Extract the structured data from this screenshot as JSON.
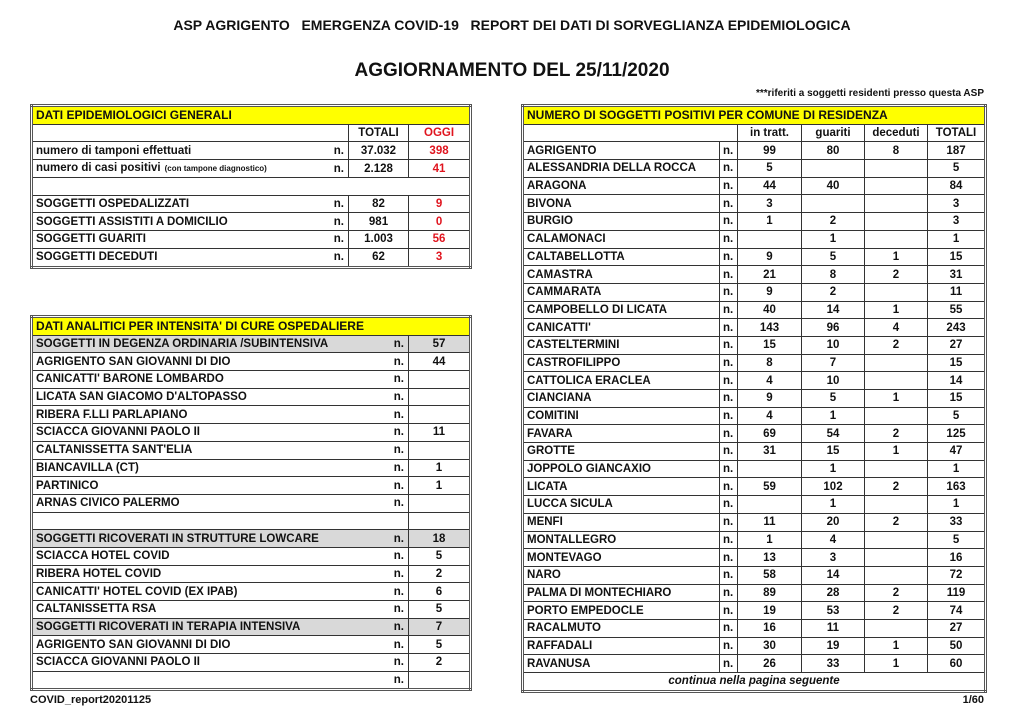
{
  "header": {
    "title": "ASP AGRIGENTO   EMERGENZA COVID-19   REPORT DEI DATI DI SORVEGLIANZA EPIDEMIOLOGICA",
    "subtitle": "AGGIORNAMENTO DEL 25/11/2020",
    "note": "***riferiti a soggetti residenti presso questa ASP"
  },
  "general": {
    "title": "DATI EPIDEMIOLOGICI GENERALI",
    "col_totali": "TOTALI",
    "col_oggi": "OGGI",
    "rows": [
      {
        "label": "numero di tamponi effettuati",
        "unit": "n.",
        "totali": "37.032",
        "oggi": "398"
      },
      {
        "label": "numero di casi positivi",
        "label_small": "(con tampone diagnostico)",
        "unit": "n.",
        "totali": "2.128",
        "oggi": "41"
      },
      {
        "label": "",
        "unit": "",
        "totali": "",
        "oggi": ""
      },
      {
        "label": "SOGGETTI OSPEDALIZZATI",
        "unit": "n.",
        "totali": "82",
        "oggi": "9"
      },
      {
        "label": "SOGGETTI ASSISTITI A DOMICILIO",
        "unit": "n.",
        "totali": "981",
        "oggi": "0"
      },
      {
        "label": "SOGGETTI GUARITI",
        "unit": "n.",
        "totali": "1.003",
        "oggi": "56"
      },
      {
        "label": "SOGGETTI DECEDUTI",
        "unit": "n.",
        "totali": "62",
        "oggi": "3"
      }
    ],
    "highlight_color": "#ffff00",
    "today_color": "#e0141e"
  },
  "hospital": {
    "title": "DATI ANALITICI PER INTENSITA' DI CURE OSPEDALIERE",
    "rows": [
      {
        "label": "SOGGETTI IN DEGENZA ORDINARIA /SUBINTENSIVA",
        "unit": "n.",
        "value": "57",
        "group": true
      },
      {
        "label": "AGRIGENTO SAN GIOVANNI DI DIO",
        "unit": "n.",
        "value": "44"
      },
      {
        "label": "CANICATTI'  BARONE LOMBARDO",
        "unit": "n.",
        "value": ""
      },
      {
        "label": "LICATA SAN GIACOMO D'ALTOPASSO",
        "unit": "n.",
        "value": ""
      },
      {
        "label": "RIBERA F.LLI PARLAPIANO",
        "unit": "n.",
        "value": ""
      },
      {
        "label": "SCIACCA GIOVANNI PAOLO II",
        "unit": "n.",
        "value": "11"
      },
      {
        "label": "CALTANISSETTA SANT'ELIA",
        "unit": "n.",
        "value": ""
      },
      {
        "label": "BIANCAVILLA (CT)",
        "unit": "n.",
        "value": "1"
      },
      {
        "label": "PARTINICO",
        "unit": "n.",
        "value": "1"
      },
      {
        "label": "ARNAS CIVICO PALERMO",
        "unit": "n.",
        "value": ""
      },
      {
        "label": "",
        "unit": "",
        "value": ""
      },
      {
        "label": "SOGGETTI RICOVERATI IN STRUTTURE LOWCARE",
        "unit": "n.",
        "value": "18",
        "group": true
      },
      {
        "label": "SCIACCA HOTEL COVID",
        "unit": "n.",
        "value": "5"
      },
      {
        "label": "RIBERA HOTEL COVID",
        "unit": "n.",
        "value": "2"
      },
      {
        "label": "CANICATTI' HOTEL COVID (EX IPAB)",
        "unit": "n.",
        "value": "6"
      },
      {
        "label": "CALTANISSETTA RSA",
        "unit": "n.",
        "value": "5"
      },
      {
        "label": "SOGGETTI RICOVERATI IN TERAPIA INTENSIVA",
        "unit": "n.",
        "value": "7",
        "group": true
      },
      {
        "label": "AGRIGENTO SAN GIOVANNI DI DIO",
        "unit": "n.",
        "value": "5"
      },
      {
        "label": "SCIACCA GIOVANNI PAOLO II",
        "unit": "n.",
        "value": "2"
      },
      {
        "label": "",
        "unit": "n.",
        "value": ""
      }
    ]
  },
  "municipalities": {
    "title": "NUMERO DI SOGGETTI POSITIVI PER COMUNE DI RESIDENZA",
    "columns": [
      "in tratt.",
      "guariti",
      "deceduti",
      "TOTALI"
    ],
    "rows": [
      [
        "AGRIGENTO",
        "n.",
        "99",
        "80",
        "8",
        "187"
      ],
      [
        "ALESSANDRIA DELLA ROCCA",
        "n.",
        "5",
        "",
        "",
        "5"
      ],
      [
        "ARAGONA",
        "n.",
        "44",
        "40",
        "",
        "84"
      ],
      [
        "BIVONA",
        "n.",
        "3",
        "",
        "",
        "3"
      ],
      [
        "BURGIO",
        "n.",
        "1",
        "2",
        "",
        "3"
      ],
      [
        "CALAMONACI",
        "n.",
        "",
        "1",
        "",
        "1"
      ],
      [
        "CALTABELLOTTA",
        "n.",
        "9",
        "5",
        "1",
        "15"
      ],
      [
        "CAMASTRA",
        "n.",
        "21",
        "8",
        "2",
        "31"
      ],
      [
        "CAMMARATA",
        "n.",
        "9",
        "2",
        "",
        "11"
      ],
      [
        "CAMPOBELLO DI LICATA",
        "n.",
        "40",
        "14",
        "1",
        "55"
      ],
      [
        "CANICATTI'",
        "n.",
        "143",
        "96",
        "4",
        "243"
      ],
      [
        "CASTELTERMINI",
        "n.",
        "15",
        "10",
        "2",
        "27"
      ],
      [
        "CASTROFILIPPO",
        "n.",
        "8",
        "7",
        "",
        "15"
      ],
      [
        "CATTOLICA ERACLEA",
        "n.",
        "4",
        "10",
        "",
        "14"
      ],
      [
        "CIANCIANA",
        "n.",
        "9",
        "5",
        "1",
        "15"
      ],
      [
        "COMITINI",
        "n.",
        "4",
        "1",
        "",
        "5"
      ],
      [
        "FAVARA",
        "n.",
        "69",
        "54",
        "2",
        "125"
      ],
      [
        "GROTTE",
        "n.",
        "31",
        "15",
        "1",
        "47"
      ],
      [
        "JOPPOLO GIANCAXIO",
        "n.",
        "",
        "1",
        "",
        "1"
      ],
      [
        "LICATA",
        "n.",
        "59",
        "102",
        "2",
        "163"
      ],
      [
        "LUCCA SICULA",
        "n.",
        "",
        "1",
        "",
        "1"
      ],
      [
        "MENFI",
        "n.",
        "11",
        "20",
        "2",
        "33"
      ],
      [
        "MONTALLEGRO",
        "n.",
        "1",
        "4",
        "",
        "5"
      ],
      [
        "MONTEVAGO",
        "n.",
        "13",
        "3",
        "",
        "16"
      ],
      [
        "NARO",
        "n.",
        "58",
        "14",
        "",
        "72"
      ],
      [
        "PALMA DI MONTECHIARO",
        "n.",
        "89",
        "28",
        "2",
        "119"
      ],
      [
        "PORTO EMPEDOCLE",
        "n.",
        "19",
        "53",
        "2",
        "74"
      ],
      [
        "RACALMUTO",
        "n.",
        "16",
        "11",
        "",
        "27"
      ],
      [
        "RAFFADALI",
        "n.",
        "30",
        "19",
        "1",
        "50"
      ],
      [
        "RAVANUSA",
        "n.",
        "26",
        "33",
        "1",
        "60"
      ]
    ],
    "continue_note": "continua nella pagina seguente"
  },
  "footer": {
    "file": "COVID_report20201125",
    "page": "1/60"
  }
}
